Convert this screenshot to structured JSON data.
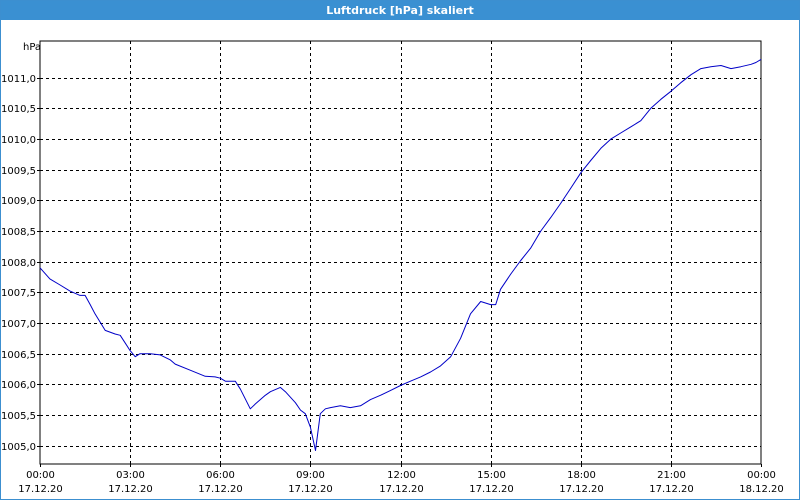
{
  "window": {
    "title": "Luftdruck [hPa] skaliert"
  },
  "colors": {
    "titlebar": "#3a90d2",
    "line": "#0000c8",
    "grid": "#000000"
  },
  "chart_data": {
    "type": "line",
    "title": "Luftdruck [hPa] skaliert",
    "ylabel": "hPa",
    "xlabel": "",
    "ylim": [
      1004.7,
      1011.6
    ],
    "xlim": [
      0,
      24
    ],
    "grid": true,
    "y_ticks": [
      {
        "value": 1011.0,
        "label": "1011,0"
      },
      {
        "value": 1010.5,
        "label": "1010,5"
      },
      {
        "value": 1010.0,
        "label": "1010,0"
      },
      {
        "value": 1009.5,
        "label": "1009,5"
      },
      {
        "value": 1009.0,
        "label": "1009,0"
      },
      {
        "value": 1008.5,
        "label": "1008,5"
      },
      {
        "value": 1008.0,
        "label": "1008,0"
      },
      {
        "value": 1007.5,
        "label": "1007,5"
      },
      {
        "value": 1007.0,
        "label": "1007,0"
      },
      {
        "value": 1006.5,
        "label": "1006,5"
      },
      {
        "value": 1006.0,
        "label": "1006,0"
      },
      {
        "value": 1005.5,
        "label": "1005,5"
      },
      {
        "value": 1005.0,
        "label": "1005,0"
      }
    ],
    "x_ticks": [
      {
        "value": 0,
        "time": "00:00",
        "date": "17.12.20"
      },
      {
        "value": 3,
        "time": "03:00",
        "date": "17.12.20"
      },
      {
        "value": 6,
        "time": "06:00",
        "date": "17.12.20"
      },
      {
        "value": 9,
        "time": "09:00",
        "date": "17.12.20"
      },
      {
        "value": 12,
        "time": "12:00",
        "date": "17.12.20"
      },
      {
        "value": 15,
        "time": "15:00",
        "date": "17.12.20"
      },
      {
        "value": 18,
        "time": "18:00",
        "date": "17.12.20"
      },
      {
        "value": 21,
        "time": "21:00",
        "date": "17.12.20"
      },
      {
        "value": 24,
        "time": "00:00",
        "date": "18.12.20"
      }
    ],
    "series": [
      {
        "x": [
          0,
          0.33,
          0.67,
          1.0,
          1.33,
          1.5,
          1.67,
          1.83,
          2.17,
          2.5,
          2.67,
          3.0,
          3.17,
          3.33,
          3.67,
          4.0,
          4.33,
          4.5,
          5.0,
          5.5,
          5.83,
          6.0,
          6.17,
          6.5,
          6.67,
          7.0,
          7.17,
          7.5,
          7.67,
          8.0,
          8.17,
          8.5,
          8.67,
          8.83,
          9.0,
          9.17,
          9.33,
          9.5,
          9.67,
          10.0,
          10.33,
          10.67,
          11.0,
          11.33,
          11.67,
          12.0,
          12.33,
          12.67,
          13.0,
          13.33,
          13.67,
          14.0,
          14.33,
          14.67,
          15.0,
          15.17,
          15.33,
          15.67,
          16.0,
          16.33,
          16.67,
          17.0,
          17.33,
          17.67,
          18.0,
          18.33,
          18.67,
          19.0,
          19.33,
          19.67,
          20.0,
          20.33,
          20.67,
          21.0,
          21.33,
          21.67,
          22.0,
          22.33,
          22.67,
          23.0,
          23.33,
          23.67,
          23.83,
          24.0
        ],
        "values": [
          1007.9,
          1007.72,
          1007.62,
          1007.52,
          1007.45,
          1007.45,
          1007.3,
          1007.15,
          1006.88,
          1006.82,
          1006.8,
          1006.55,
          1006.45,
          1006.5,
          1006.5,
          1006.48,
          1006.4,
          1006.33,
          1006.23,
          1006.13,
          1006.12,
          1006.1,
          1006.05,
          1006.05,
          1005.92,
          1005.6,
          1005.68,
          1005.82,
          1005.88,
          1005.95,
          1005.88,
          1005.7,
          1005.58,
          1005.52,
          1005.3,
          1004.92,
          1005.52,
          1005.6,
          1005.62,
          1005.65,
          1005.62,
          1005.65,
          1005.75,
          1005.82,
          1005.9,
          1005.98,
          1006.05,
          1006.12,
          1006.2,
          1006.3,
          1006.45,
          1006.75,
          1007.15,
          1007.35,
          1007.3,
          1007.3,
          1007.55,
          1007.8,
          1008.02,
          1008.22,
          1008.5,
          1008.72,
          1008.95,
          1009.2,
          1009.45,
          1009.65,
          1009.85,
          1010.0,
          1010.1,
          1010.2,
          1010.3,
          1010.5,
          1010.65,
          1010.78,
          1010.92,
          1011.05,
          1011.15,
          1011.18,
          1011.2,
          1011.15,
          1011.18,
          1011.22,
          1011.25,
          1011.3
        ]
      }
    ]
  }
}
